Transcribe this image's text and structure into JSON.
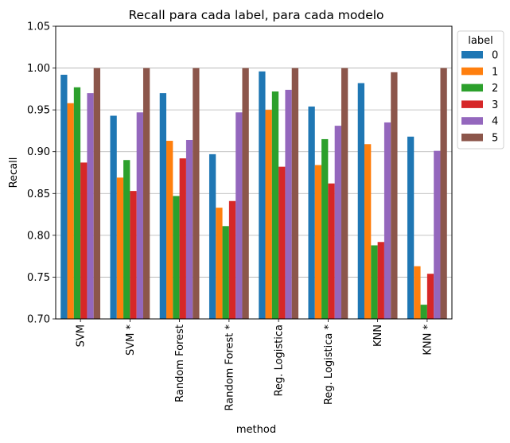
{
  "chart_data": {
    "type": "bar",
    "title": "Recall para cada label, para cada modelo",
    "xlabel": "method",
    "ylabel": "Recall",
    "ylim": [
      0.7,
      1.05
    ],
    "yticks": [
      "0.70",
      "0.75",
      "0.80",
      "0.85",
      "0.90",
      "0.95",
      "1.00",
      "1.05"
    ],
    "grid": "horizontal",
    "legend": {
      "title": "label",
      "placement": "outside-top-right"
    },
    "categories": [
      "SVM",
      "SVM *",
      "Random Forest",
      "Random Forest *",
      "Reg. Logistica",
      "Reg. Logistica *",
      "KNN",
      "KNN *"
    ],
    "series": [
      {
        "name": "0",
        "color": "#1f77b4",
        "values": [
          0.992,
          0.943,
          0.97,
          0.897,
          0.996,
          0.954,
          0.982,
          0.918
        ]
      },
      {
        "name": "1",
        "color": "#ff7f0e",
        "values": [
          0.958,
          0.869,
          0.913,
          0.833,
          0.95,
          0.884,
          0.909,
          0.763
        ]
      },
      {
        "name": "2",
        "color": "#2ca02c",
        "values": [
          0.977,
          0.89,
          0.847,
          0.811,
          0.972,
          0.915,
          0.788,
          0.717
        ]
      },
      {
        "name": "3",
        "color": "#d62728",
        "values": [
          0.887,
          0.853,
          0.892,
          0.841,
          0.882,
          0.862,
          0.792,
          0.754
        ]
      },
      {
        "name": "4",
        "color": "#9467bd",
        "values": [
          0.97,
          0.947,
          0.914,
          0.947,
          0.974,
          0.931,
          0.935,
          0.901
        ]
      },
      {
        "name": "5",
        "color": "#8c564b",
        "values": [
          1.0,
          1.0,
          1.0,
          1.0,
          1.0,
          1.0,
          0.995,
          1.0
        ]
      }
    ]
  }
}
